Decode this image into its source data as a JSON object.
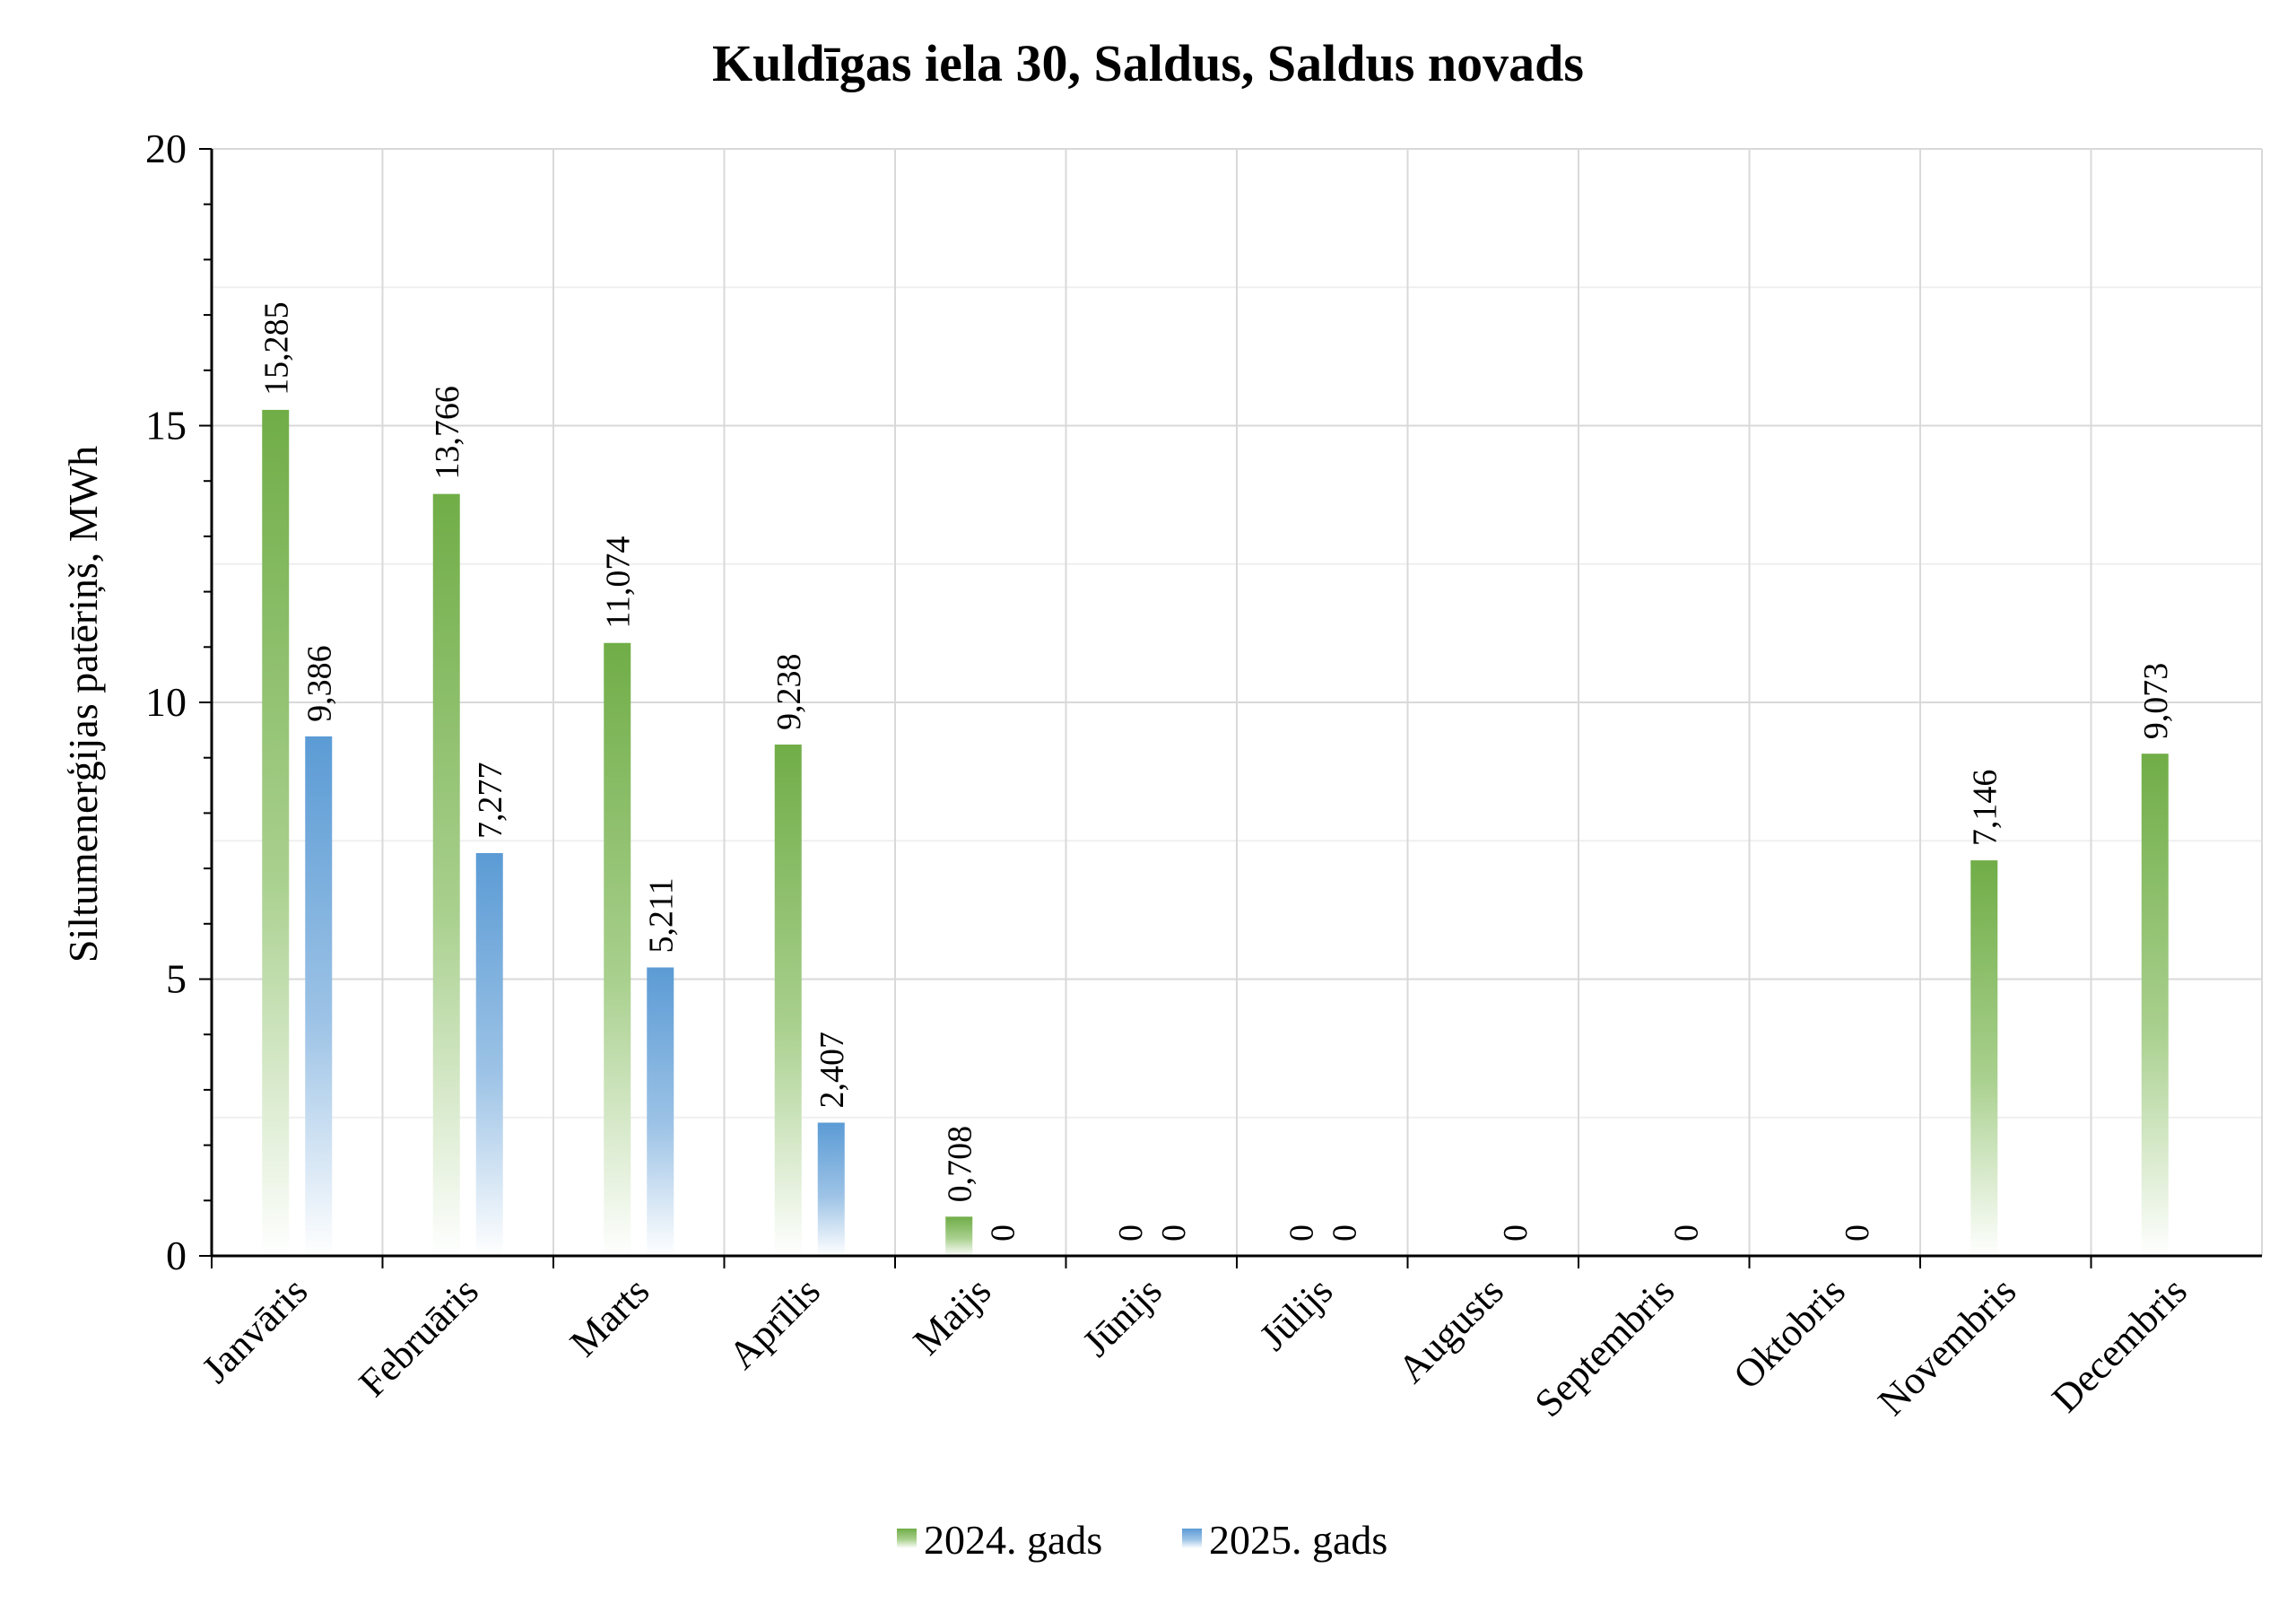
{
  "chart_data": {
    "type": "bar",
    "title": "Kuldīgas iela 30, Saldus, Saldus novads",
    "ylabel": "Siltumenerģijas patēriņš, MWh",
    "xlabel": "",
    "ylim": [
      0,
      20
    ],
    "yticks": [
      0,
      5,
      10,
      15,
      20
    ],
    "grid": true,
    "legend_position": "bottom",
    "categories": [
      "Janvāris",
      "Februāris",
      "Marts",
      "Aprīlis",
      "Maijs",
      "Jūnijs",
      "Jūlijs",
      "Augusts",
      "Septembris",
      "Oktobris",
      "Novembris",
      "Decembris"
    ],
    "series": [
      {
        "name": "2024. gads",
        "color": "#70ad47",
        "values": [
          15.285,
          13.766,
          11.074,
          9.238,
          0.708,
          0,
          0,
          0,
          0,
          0,
          7.146,
          9.073
        ],
        "labels": [
          "15,285",
          "13,766",
          "11,074",
          "9,238",
          "0,708",
          "0",
          "0",
          "",
          "",
          "",
          "7,146",
          "9,073"
        ]
      },
      {
        "name": "2025. gads",
        "color": "#5b9bd5",
        "values": [
          9.386,
          7.277,
          5.211,
          2.407,
          0,
          0,
          0,
          0,
          0,
          0,
          null,
          null
        ],
        "labels": [
          "9,386",
          "7,277",
          "5,211",
          "2,407",
          "0",
          "0",
          "0",
          "0",
          "0",
          "0",
          "",
          ""
        ]
      }
    ]
  }
}
